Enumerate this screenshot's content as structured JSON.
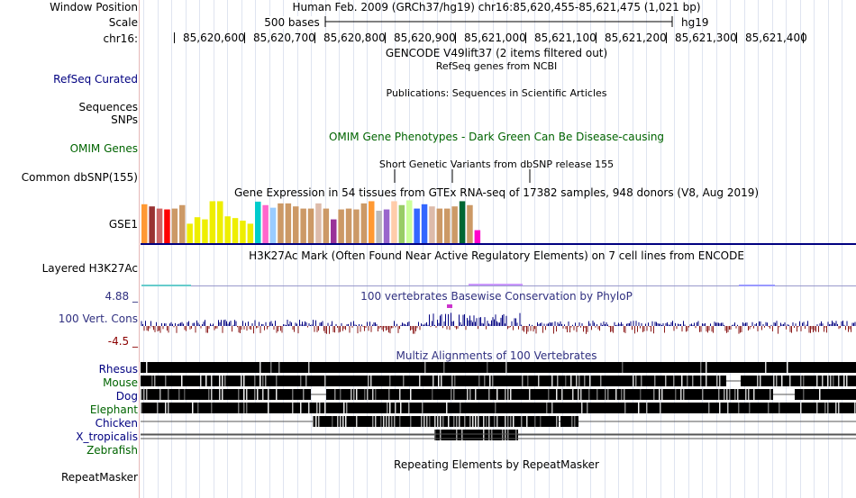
{
  "header": {
    "window_position_label": "Window Position",
    "window_position_value": "Human Feb. 2009 (GRCh37/hg19)   chr16:85,620,455-85,621,475 (1,021 bp)",
    "scale_label": "Scale",
    "scale_bar_text": "500 bases",
    "scale_assembly": "hg19",
    "chrom_label": "chr16:",
    "ticks": [
      "85,620,600",
      "85,620,700",
      "85,620,800",
      "85,620,900",
      "85,621,000",
      "85,621,100",
      "85,621,200",
      "85,621,300",
      "85,621,400"
    ]
  },
  "tracks": {
    "gencode_title": "GENCODE V49lift37 (2 items filtered out)",
    "refseq_title": "RefSeq genes from NCBI",
    "refseq_label": "RefSeq Curated",
    "publications_title": "Publications: Sequences in Scientific Articles",
    "sequences_label": "Sequences",
    "snps_label": "SNPs",
    "omim_label": "OMIM Genes",
    "omim_title": "OMIM Gene Phenotypes - Dark Green Can Be Disease-causing",
    "dbsnp_title": "Short Genetic Variants from dbSNP release 155",
    "dbsnp_label": "Common dbSNP(155)",
    "gtex_title": "Gene Expression in 54 tissues from GTEx RNA-seq of 17382 samples, 948 donors (V8, Aug 2019)",
    "gtex_label": "GSE1",
    "h3k27ac_label": "Layered H3K27Ac",
    "h3k27ac_title": "H3K27Ac Mark (Often Found Near Active Regulatory Elements) on 7 cell lines from ENCODE",
    "cons_max": "4.88 _",
    "cons_min": "-4.5 _",
    "cons_label": "100 Vert. Cons",
    "cons_title": "100 vertebrates Basewise Conservation by PhyloP",
    "multiz_title": "Multiz Alignments of 100 Vertebrates",
    "species": [
      {
        "name": "Rhesus",
        "color": "#000080"
      },
      {
        "name": "Mouse",
        "color": "#006400"
      },
      {
        "name": "Dog",
        "color": "#000080"
      },
      {
        "name": "Elephant",
        "color": "#006400"
      },
      {
        "name": "Chicken",
        "color": "#000080"
      },
      {
        "name": "X_tropicalis",
        "color": "#000080"
      },
      {
        "name": "Zebrafish",
        "color": "#006400"
      }
    ],
    "repeat_title": "Repeating Elements by RepeatMasker",
    "repeat_label": "RepeatMasker"
  },
  "gtex_bars": [
    {
      "h": 0.9,
      "c": "#ff9933"
    },
    {
      "h": 0.85,
      "c": "#993333"
    },
    {
      "h": 0.8,
      "c": "#cc6666"
    },
    {
      "h": 0.78,
      "c": "#ff0000"
    },
    {
      "h": 0.8,
      "c": "#cc9966"
    },
    {
      "h": 0.88,
      "c": "#cc9966"
    },
    {
      "h": 0.45,
      "c": "#eeee00"
    },
    {
      "h": 0.6,
      "c": "#eeee00"
    },
    {
      "h": 0.55,
      "c": "#eeee00"
    },
    {
      "h": 0.97,
      "c": "#eeee00"
    },
    {
      "h": 0.97,
      "c": "#eeee00"
    },
    {
      "h": 0.62,
      "c": "#eeee00"
    },
    {
      "h": 0.58,
      "c": "#eeee00"
    },
    {
      "h": 0.52,
      "c": "#eeee00"
    },
    {
      "h": 0.45,
      "c": "#eeee00"
    },
    {
      "h": 0.96,
      "c": "#00cccc"
    },
    {
      "h": 0.88,
      "c": "#ff66cc"
    },
    {
      "h": 0.82,
      "c": "#99ccff"
    },
    {
      "h": 0.92,
      "c": "#cc9966"
    },
    {
      "h": 0.92,
      "c": "#cc9966"
    },
    {
      "h": 0.85,
      "c": "#cc9966"
    },
    {
      "h": 0.8,
      "c": "#cc9966"
    },
    {
      "h": 0.8,
      "c": "#cc9966"
    },
    {
      "h": 0.92,
      "c": "#ddbbaa"
    },
    {
      "h": 0.8,
      "c": "#cc9966"
    },
    {
      "h": 0.55,
      "c": "#993399"
    },
    {
      "h": 0.78,
      "c": "#cc9966"
    },
    {
      "h": 0.8,
      "c": "#cc9966"
    },
    {
      "h": 0.78,
      "c": "#cc9966"
    },
    {
      "h": 0.92,
      "c": "#cc9966"
    },
    {
      "h": 0.97,
      "c": "#ff9933"
    },
    {
      "h": 0.75,
      "c": "#bbbbbb"
    },
    {
      "h": 0.78,
      "c": "#9966cc"
    },
    {
      "h": 0.97,
      "c": "#ffccaa"
    },
    {
      "h": 0.88,
      "c": "#99cc66"
    },
    {
      "h": 0.99,
      "c": "#ccff99"
    },
    {
      "h": 0.8,
      "c": "#3366ff"
    },
    {
      "h": 0.9,
      "c": "#3366ff"
    },
    {
      "h": 0.85,
      "c": "#ddbbaa"
    },
    {
      "h": 0.8,
      "c": "#cc9966"
    },
    {
      "h": 0.8,
      "c": "#cc9966"
    },
    {
      "h": 0.85,
      "c": "#cc9966"
    },
    {
      "h": 0.97,
      "c": "#006633"
    },
    {
      "h": 0.88,
      "c": "#cc9966"
    },
    {
      "h": 0.3,
      "c": "#ff00cc"
    }
  ]
}
